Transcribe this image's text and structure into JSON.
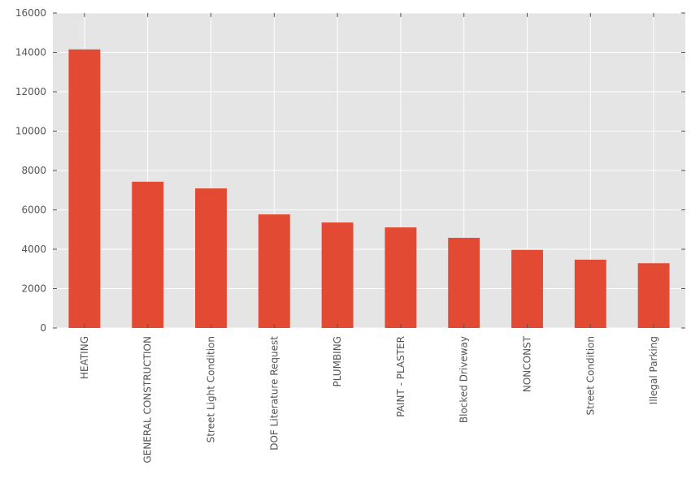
{
  "chart_data": {
    "type": "bar",
    "title": "",
    "xlabel": "",
    "ylabel": "",
    "categories": [
      "HEATING",
      "GENERAL CONSTRUCTION",
      "Street Light Condition",
      "DOF Literature Request",
      "PLUMBING",
      "PAINT - PLASTER",
      "Blocked Driveway",
      "NONCONST",
      "Street Condition",
      "Illegal Parking"
    ],
    "values": [
      14150,
      7430,
      7090,
      5770,
      5360,
      5110,
      4580,
      3970,
      3470,
      3290
    ],
    "ylim": [
      0,
      16000
    ],
    "yticks": [
      0,
      2000,
      4000,
      6000,
      8000,
      10000,
      12000,
      14000,
      16000
    ],
    "grid": true,
    "legend": "none",
    "colors": {
      "bar": "#E24A33",
      "background": "#E5E5E5",
      "grid": "#FFFFFF",
      "tick_text": "#555555",
      "tick_mark": "#555555"
    }
  }
}
